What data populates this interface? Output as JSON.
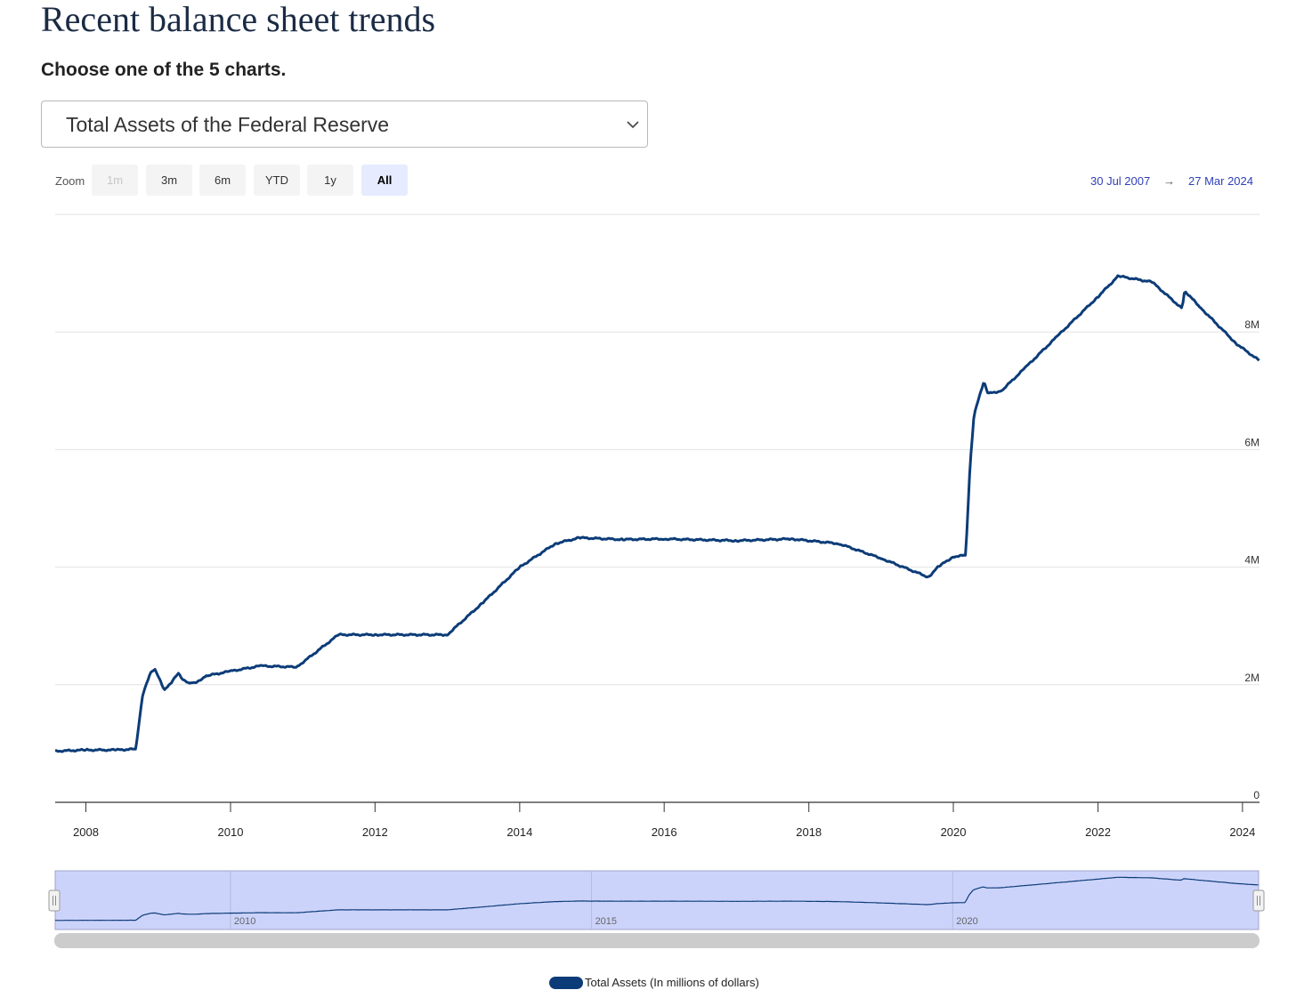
{
  "page": {
    "title": "Recent balance sheet trends",
    "subtitle": "Choose one of the 5 charts."
  },
  "selector": {
    "value": "Total Assets of the Federal Reserve",
    "icon": "chevron-down-icon"
  },
  "zoom": {
    "label": "Zoom",
    "buttons": [
      {
        "label": "1m",
        "state": "disabled"
      },
      {
        "label": "3m",
        "state": "normal"
      },
      {
        "label": "6m",
        "state": "normal"
      },
      {
        "label": "YTD",
        "state": "normal"
      },
      {
        "label": "1y",
        "state": "normal"
      },
      {
        "label": "All",
        "state": "active"
      }
    ]
  },
  "range": {
    "from": "30 Jul 2007",
    "arrow": "→",
    "to": "27 Mar 2024"
  },
  "colors": {
    "series": "#0c3c78",
    "navigator_fill": "#ccd3fb",
    "range_text": "#2f3fb8",
    "grid": "#e2e2e2"
  },
  "legend": {
    "label": "Total Assets (In millions of dollars)"
  },
  "chart_data": {
    "type": "line",
    "title": "",
    "xlabel": "",
    "ylabel": "",
    "xlim": [
      "2007-07-30",
      "2024-03-27"
    ],
    "ylim": [
      0,
      10000000
    ],
    "y_ticks": [
      {
        "value": 0,
        "label": "0"
      },
      {
        "value": 2000000,
        "label": "2M"
      },
      {
        "value": 4000000,
        "label": "4M"
      },
      {
        "value": 6000000,
        "label": "6M"
      },
      {
        "value": 8000000,
        "label": "8M"
      }
    ],
    "x_ticks": [
      "2008",
      "2010",
      "2012",
      "2014",
      "2016",
      "2018",
      "2020",
      "2022",
      "2024"
    ],
    "navigator_ticks": [
      "2010",
      "2015",
      "2020"
    ],
    "grid": true,
    "legend_position": "bottom-center",
    "series": [
      {
        "name": "Total Assets (In millions of dollars)",
        "x": [
          "2007-07-30",
          "2008-01-01",
          "2008-06-01",
          "2008-09-10",
          "2008-09-24",
          "2008-10-15",
          "2008-11-26",
          "2008-12-17",
          "2009-02-01",
          "2009-03-15",
          "2009-04-10",
          "2009-05-10",
          "2009-06-10",
          "2009-07-15",
          "2009-09-01",
          "2010-01-01",
          "2010-06-01",
          "2010-12-01",
          "2011-06-30",
          "2012-01-01",
          "2012-12-31",
          "2013-06-30",
          "2014-01-01",
          "2014-06-30",
          "2014-10-30",
          "2015-06-01",
          "2016-01-01",
          "2017-01-01",
          "2017-10-01",
          "2018-06-01",
          "2019-01-01",
          "2019-08-28",
          "2019-10-15",
          "2020-01-01",
          "2020-03-04",
          "2020-03-25",
          "2020-04-15",
          "2020-06-03",
          "2020-06-24",
          "2020-09-01",
          "2021-01-01",
          "2021-06-01",
          "2022-01-01",
          "2022-04-13",
          "2022-10-01",
          "2023-03-01",
          "2023-03-15",
          "2023-06-01",
          "2023-12-01",
          "2024-03-27"
        ],
        "values": [
          870000,
          890000,
          890000,
          905000,
          1300000,
          1850000,
          2220000,
          2250000,
          1900000,
          2070000,
          2200000,
          2070000,
          2030000,
          2050000,
          2150000,
          2230000,
          2320000,
          2300000,
          2850000,
          2850000,
          2850000,
          3400000,
          4000000,
          4400000,
          4500000,
          4470000,
          4480000,
          4450000,
          4480000,
          4400000,
          4150000,
          3830000,
          4000000,
          4180000,
          4200000,
          5700000,
          6600000,
          7150000,
          6950000,
          7000000,
          7400000,
          7900000,
          8600000,
          8950000,
          8850000,
          8400000,
          8700000,
          8420000,
          7800000,
          7510000
        ]
      }
    ]
  }
}
